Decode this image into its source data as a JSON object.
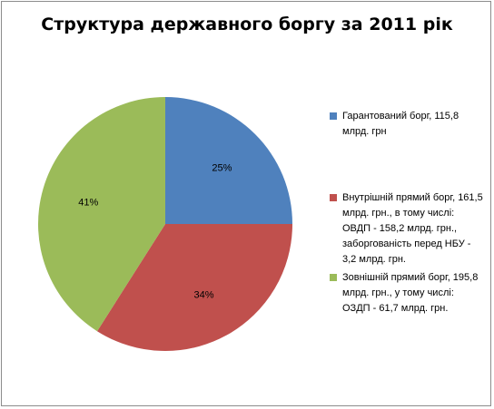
{
  "chart_data": {
    "type": "pie",
    "title": "Структура державного боргу за 2011 рік",
    "slices": [
      {
        "name": "Гарантований борг, 115,8 млрд. грн",
        "value": 25,
        "label": "25%",
        "color": "#4f81bd"
      },
      {
        "name": "Внутрішній прямий борг, 161,5 млрд. грн., в тому числі: ОВДП - 158,2 млрд. грн., заборгованість перед НБУ - 3,2 млрд. грн.",
        "value": 34,
        "label": "34%",
        "color": "#c0504d"
      },
      {
        "name": "Зовнішній прямий борг, 195,8 млрд. грн., у тому числі: ОЗДП - 61,7 млрд. грн.",
        "value": 41,
        "label": "41%",
        "color": "#9bbb59"
      }
    ],
    "legend_position": "right"
  }
}
